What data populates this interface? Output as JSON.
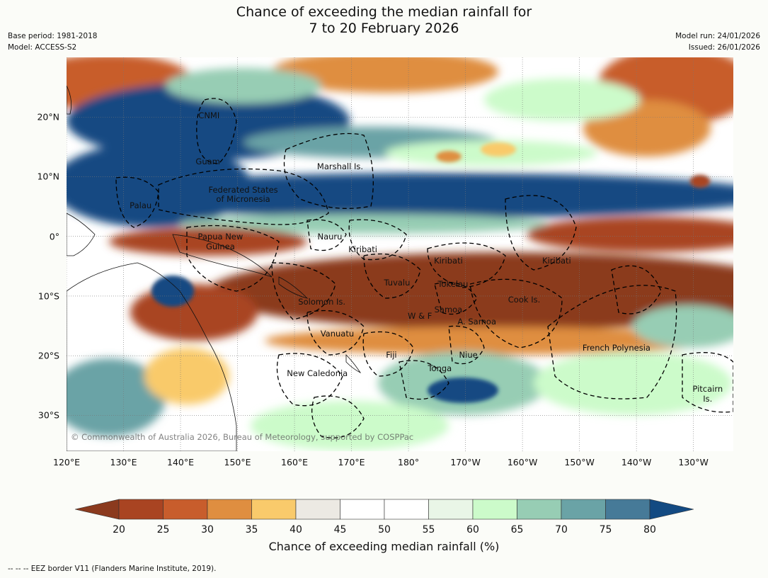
{
  "title": {
    "line1": "Chance of exceeding the median rainfall for",
    "line2": "7 to 20 February 2026"
  },
  "meta": {
    "base_period": "Base period: 1981-2018",
    "model": "Model: ACCESS-S2",
    "model_run": "Model run: 24/01/2026",
    "issued": "Issued: 26/01/2026"
  },
  "map": {
    "lon_range": [
      120,
      237
    ],
    "lat_range": [
      -36,
      30
    ],
    "x_ticks": [
      {
        "lon": 120,
        "label": "120°E"
      },
      {
        "lon": 130,
        "label": "130°E"
      },
      {
        "lon": 140,
        "label": "140°E"
      },
      {
        "lon": 150,
        "label": "150°E"
      },
      {
        "lon": 160,
        "label": "160°E"
      },
      {
        "lon": 170,
        "label": "170°E"
      },
      {
        "lon": 180,
        "label": "180°"
      },
      {
        "lon": 190,
        "label": "170°W"
      },
      {
        "lon": 200,
        "label": "160°W"
      },
      {
        "lon": 210,
        "label": "150°W"
      },
      {
        "lon": 220,
        "label": "140°W"
      },
      {
        "lon": 230,
        "label": "130°W"
      }
    ],
    "y_ticks": [
      {
        "lat": 20,
        "label": "20°N"
      },
      {
        "lat": 10,
        "label": "10°N"
      },
      {
        "lat": 0,
        "label": "0°"
      },
      {
        "lat": -10,
        "label": "10°S"
      },
      {
        "lat": -20,
        "label": "20°S"
      },
      {
        "lat": -30,
        "label": "30°S"
      }
    ],
    "places": [
      {
        "name": "CNMI",
        "lon": 145.0,
        "lat": 20.3
      },
      {
        "name": "Guam",
        "lon": 144.8,
        "lat": 12.6
      },
      {
        "name": "Marshall Is.",
        "lon": 168.0,
        "lat": 11.7
      },
      {
        "name": "Federated States",
        "lon": 151.0,
        "lat": 7.8
      },
      {
        "name": "of Micronesia",
        "lon": 151.0,
        "lat": 6.2
      },
      {
        "name": "Palau",
        "lon": 133.0,
        "lat": 5.2
      },
      {
        "name": "Papua New",
        "lon": 147.0,
        "lat": 0.0
      },
      {
        "name": "Guinea",
        "lon": 147.0,
        "lat": -1.7
      },
      {
        "name": "Nauru",
        "lon": 166.2,
        "lat": 0.0
      },
      {
        "name": "Kiribati",
        "lon": 172.0,
        "lat": -2.2
      },
      {
        "name": "Kiribati",
        "lon": 187.0,
        "lat": -4.1
      },
      {
        "name": "Kiribati",
        "lon": 206.0,
        "lat": -4.1
      },
      {
        "name": "Tuvalu",
        "lon": 178.0,
        "lat": -7.8
      },
      {
        "name": "Tokelau",
        "lon": 187.8,
        "lat": -8.0
      },
      {
        "name": "Solomon Is.",
        "lon": 164.8,
        "lat": -11.0
      },
      {
        "name": "Cook Is.",
        "lon": 200.3,
        "lat": -10.6
      },
      {
        "name": "Samoa",
        "lon": 187.0,
        "lat": -12.3
      },
      {
        "name": "W & F",
        "lon": 182.0,
        "lat": -13.3
      },
      {
        "name": "A. Samoa",
        "lon": 192.0,
        "lat": -14.3
      },
      {
        "name": "Vanuatu",
        "lon": 167.5,
        "lat": -16.3
      },
      {
        "name": "Fiji",
        "lon": 177.0,
        "lat": -19.8
      },
      {
        "name": "Niue",
        "lon": 190.5,
        "lat": -19.8
      },
      {
        "name": "French Polynesia",
        "lon": 216.5,
        "lat": -18.7
      },
      {
        "name": "Tonga",
        "lon": 185.5,
        "lat": -22.1
      },
      {
        "name": "New Caledonia",
        "lon": 164.0,
        "lat": -23.0
      },
      {
        "name": "Pitcairn",
        "lon": 232.5,
        "lat": -25.6
      },
      {
        "name": "Is.",
        "lon": 232.5,
        "lat": -27.2
      }
    ],
    "copyright": "© Commonwealth of Australia 2026, Bureau of Meteorology, supported by COSPPac"
  },
  "colorbar": {
    "title": "Chance of exceeding median rainfall (%)",
    "low_extend_color": "#8b3a1e",
    "high_extend_color": "#134a82",
    "bins": [
      {
        "from": 20,
        "to": 25,
        "color": "#a94422"
      },
      {
        "from": 25,
        "to": 30,
        "color": "#c85d2c"
      },
      {
        "from": 30,
        "to": 35,
        "color": "#df8e40"
      },
      {
        "from": 35,
        "to": 40,
        "color": "#f9ca6b"
      },
      {
        "from": 40,
        "to": 45,
        "color": "#ece9e3"
      },
      {
        "from": 45,
        "to": 50,
        "color": "#ffffff"
      },
      {
        "from": 50,
        "to": 55,
        "color": "#ffffff"
      },
      {
        "from": 55,
        "to": 60,
        "color": "#e9f6e7"
      },
      {
        "from": 60,
        "to": 65,
        "color": "#ccfbca"
      },
      {
        "from": 65,
        "to": 70,
        "color": "#97cdb4"
      },
      {
        "from": 70,
        "to": 75,
        "color": "#6aa3a6"
      },
      {
        "from": 75,
        "to": 80,
        "color": "#467a98"
      }
    ],
    "tick_labels": [
      "20",
      "25",
      "30",
      "35",
      "40",
      "45",
      "50",
      "55",
      "60",
      "65",
      "70",
      "75",
      "80"
    ]
  },
  "footnote": "--  --  -- EEZ border V11 (Flanders Marine Institute, 2019)."
}
